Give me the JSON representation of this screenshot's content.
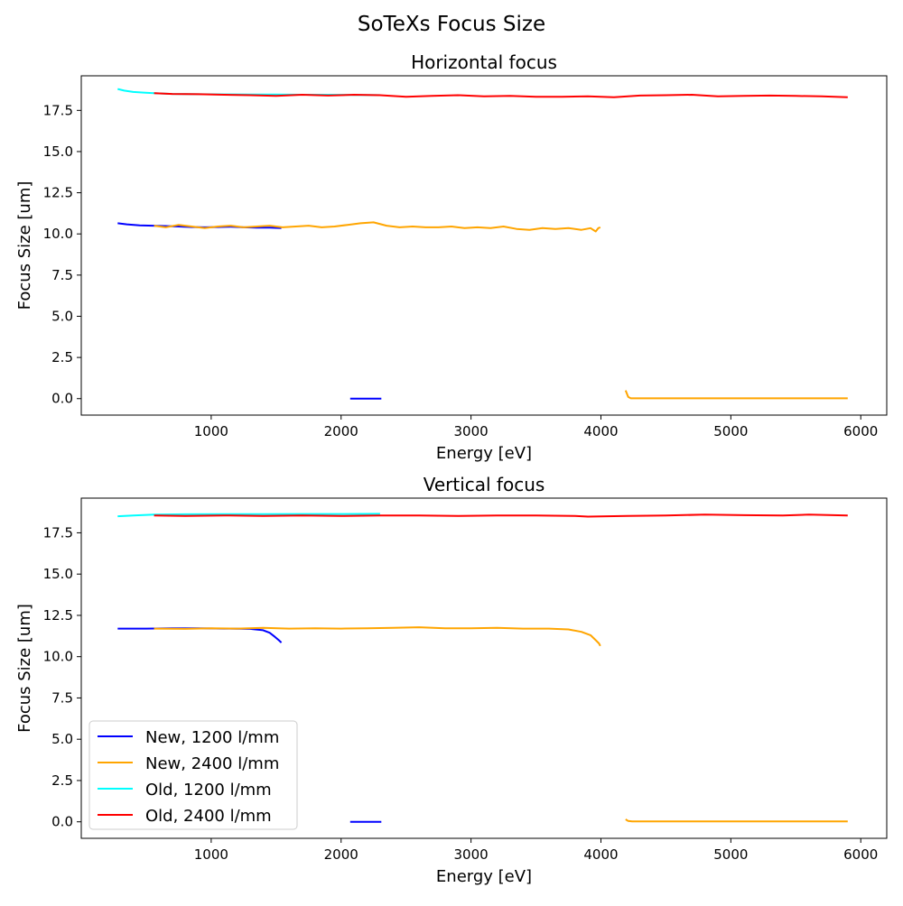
{
  "figure": {
    "suptitle": "SoTeXs Focus Size"
  },
  "chart_data": [
    {
      "type": "line",
      "title": "Horizontal focus",
      "xlabel": "Energy [eV]",
      "ylabel": "Focus Size [um]",
      "xlim": [
        0,
        6200
      ],
      "ylim": [
        -1.0,
        19.6
      ],
      "xticks": [
        1000,
        2000,
        3000,
        4000,
        5000,
        6000
      ],
      "yticks": [
        0.0,
        2.5,
        5.0,
        7.5,
        10.0,
        12.5,
        15.0,
        17.5
      ],
      "ytick_labels": [
        "0.0",
        "2.5",
        "5.0",
        "7.5",
        "10.0",
        "12.5",
        "15.0",
        "17.5"
      ],
      "grid": false,
      "legend": null,
      "series": [
        {
          "name": "Old, 1200 l/mm",
          "color": "#00ffff",
          "segments": [
            {
              "x": [
                280,
                330,
                400,
                480,
                560,
                700,
                900,
                1100,
                1300,
                1500,
                1700,
                1900,
                2100,
                2300
              ],
              "y": [
                18.8,
                18.7,
                18.62,
                18.58,
                18.55,
                18.5,
                18.48,
                18.47,
                18.46,
                18.46,
                18.45,
                18.45,
                18.44,
                18.43
              ]
            }
          ]
        },
        {
          "name": "Old, 2400 l/mm",
          "color": "#ff0000",
          "segments": [
            {
              "x": [
                560,
                700,
                900,
                1100,
                1300,
                1500,
                1700,
                1900,
                2100,
                2300,
                2500,
                2700,
                2900,
                3100,
                3300,
                3500,
                3700,
                3900,
                4100,
                4300,
                4500,
                4700,
                4900,
                5100,
                5300,
                5500,
                5700,
                5900
              ],
              "y": [
                18.55,
                18.5,
                18.48,
                18.45,
                18.42,
                18.38,
                18.45,
                18.4,
                18.45,
                18.42,
                18.33,
                18.38,
                18.42,
                18.35,
                18.38,
                18.33,
                18.33,
                18.35,
                18.3,
                18.4,
                18.42,
                18.45,
                18.35,
                18.38,
                18.4,
                18.38,
                18.35,
                18.3
              ]
            }
          ]
        },
        {
          "name": "New, 1200 l/mm",
          "color": "#0000ff",
          "segments": [
            {
              "x": [
                280,
                350,
                450,
                550,
                650,
                750,
                850,
                950,
                1050,
                1150,
                1250,
                1350,
                1450,
                1540
              ],
              "y": [
                10.65,
                10.58,
                10.52,
                10.5,
                10.48,
                10.45,
                10.42,
                10.4,
                10.42,
                10.44,
                10.4,
                10.38,
                10.38,
                10.35
              ]
            },
            {
              "x": [
                2070,
                2310
              ],
              "y": [
                0.0,
                0.0
              ]
            }
          ]
        },
        {
          "name": "New, 2400 l/mm",
          "color": "#ffa500",
          "segments": [
            {
              "x": [
                560,
                650,
                750,
                850,
                950,
                1050,
                1150,
                1250,
                1350,
                1450,
                1550,
                1650,
                1750,
                1850,
                1950,
                2050,
                2150,
                2250,
                2350,
                2450,
                2550,
                2650,
                2750,
                2850,
                2950,
                3050,
                3150,
                3250,
                3350,
                3450,
                3550,
                3650,
                3750,
                3850,
                3920,
                3960,
                3980,
                3995
              ],
              "y": [
                10.5,
                10.4,
                10.55,
                10.45,
                10.35,
                10.45,
                10.5,
                10.4,
                10.45,
                10.5,
                10.4,
                10.45,
                10.5,
                10.4,
                10.45,
                10.55,
                10.65,
                10.7,
                10.5,
                10.4,
                10.45,
                10.4,
                10.4,
                10.45,
                10.35,
                10.4,
                10.35,
                10.45,
                10.3,
                10.25,
                10.35,
                10.3,
                10.35,
                10.25,
                10.35,
                10.15,
                10.35,
                10.4
              ]
            },
            {
              "x": [
                4190,
                4210,
                4230,
                4400,
                5000,
                5600,
                5900
              ],
              "y": [
                0.5,
                0.1,
                0.02,
                0.02,
                0.02,
                0.02,
                0.02
              ]
            }
          ]
        }
      ]
    },
    {
      "type": "line",
      "title": "Vertical focus",
      "xlabel": "Energy [eV]",
      "ylabel": "Focus Size [um]",
      "xlim": [
        0,
        6200
      ],
      "ylim": [
        -1.0,
        19.6
      ],
      "xticks": [
        1000,
        2000,
        3000,
        4000,
        5000,
        6000
      ],
      "yticks": [
        0.0,
        2.5,
        5.0,
        7.5,
        10.0,
        12.5,
        15.0,
        17.5
      ],
      "ytick_labels": [
        "0.0",
        "2.5",
        "5.0",
        "7.5",
        "10.0",
        "12.5",
        "15.0",
        "17.5"
      ],
      "grid": false,
      "legend": {
        "position": "lower-left",
        "entries": [
          {
            "label": "New, 1200 l/mm",
            "color": "#0000ff"
          },
          {
            "label": "New, 2400 l/mm",
            "color": "#ffa500"
          },
          {
            "label": "Old, 1200 l/mm",
            "color": "#00ffff"
          },
          {
            "label": "Old, 2400 l/mm",
            "color": "#ff0000"
          }
        ]
      },
      "series": [
        {
          "name": "Old, 1200 l/mm",
          "color": "#00ffff",
          "segments": [
            {
              "x": [
                280,
                400,
                560,
                800,
                1100,
                1400,
                1700,
                2000,
                2300
              ],
              "y": [
                18.5,
                18.55,
                18.6,
                18.62,
                18.63,
                18.63,
                18.64,
                18.64,
                18.65
              ]
            }
          ]
        },
        {
          "name": "Old, 2400 l/mm",
          "color": "#ff0000",
          "segments": [
            {
              "x": [
                560,
                800,
                1100,
                1400,
                1700,
                2000,
                2300,
                2600,
                2900,
                3200,
                3500,
                3800,
                3900,
                4200,
                4500,
                4800,
                5100,
                5400,
                5600,
                5900
              ],
              "y": [
                18.55,
                18.52,
                18.55,
                18.52,
                18.55,
                18.52,
                18.55,
                18.55,
                18.52,
                18.55,
                18.55,
                18.52,
                18.48,
                18.52,
                18.55,
                18.6,
                18.57,
                18.55,
                18.6,
                18.55
              ]
            }
          ]
        },
        {
          "name": "New, 1200 l/mm",
          "color": "#0000ff",
          "segments": [
            {
              "x": [
                280,
                500,
                700,
                900,
                1100,
                1300,
                1400,
                1450,
                1490,
                1520,
                1540
              ],
              "y": [
                11.7,
                11.7,
                11.72,
                11.72,
                11.7,
                11.68,
                11.6,
                11.45,
                11.2,
                11.0,
                10.85
              ]
            },
            {
              "x": [
                2070,
                2310
              ],
              "y": [
                0.0,
                0.0
              ]
            }
          ]
        },
        {
          "name": "New, 2400 l/mm",
          "color": "#ffa500",
          "segments": [
            {
              "x": [
                560,
                800,
                1000,
                1200,
                1400,
                1600,
                1800,
                2000,
                2200,
                2400,
                2600,
                2800,
                3000,
                3200,
                3400,
                3600,
                3750,
                3850,
                3920,
                3960,
                3985,
                3995
              ],
              "y": [
                11.7,
                11.68,
                11.72,
                11.7,
                11.75,
                11.7,
                11.72,
                11.7,
                11.72,
                11.75,
                11.78,
                11.72,
                11.72,
                11.75,
                11.7,
                11.7,
                11.65,
                11.5,
                11.3,
                11.0,
                10.8,
                10.65
              ]
            },
            {
              "x": [
                4190,
                4210,
                4240,
                4400,
                5000,
                5600,
                5900
              ],
              "y": [
                0.15,
                0.05,
                0.02,
                0.02,
                0.02,
                0.02,
                0.02
              ]
            }
          ]
        }
      ]
    }
  ]
}
